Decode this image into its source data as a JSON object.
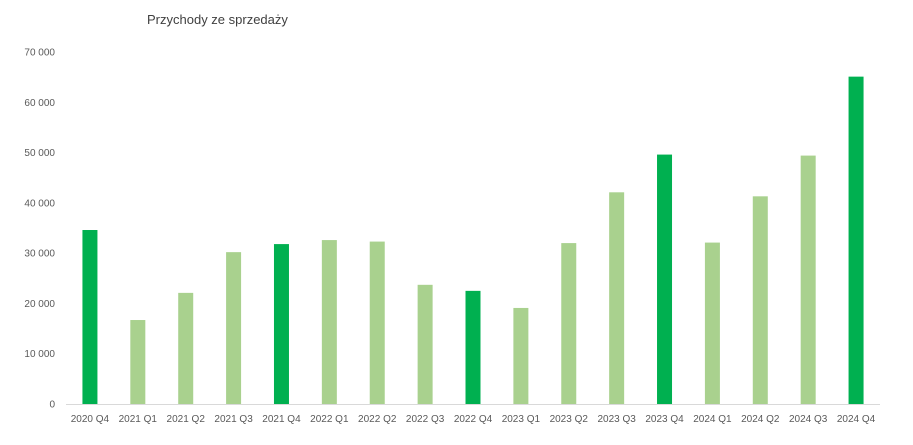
{
  "chart_data": {
    "type": "bar",
    "title": "Przychody ze sprzedaży",
    "xlabel": "",
    "ylabel": "",
    "ylim": [
      0,
      70000
    ],
    "yticks": [
      {
        "value": 0,
        "label": "0"
      },
      {
        "value": 10000,
        "label": "10 000"
      },
      {
        "value": 20000,
        "label": "20 000"
      },
      {
        "value": 30000,
        "label": "30 000"
      },
      {
        "value": 40000,
        "label": "40 000"
      },
      {
        "value": 50000,
        "label": "50 000"
      },
      {
        "value": 60000,
        "label": "60 000"
      },
      {
        "value": 70000,
        "label": "70 000"
      }
    ],
    "grid": false,
    "legend": "none",
    "categories": [
      "2020 Q4",
      "2021 Q1",
      "2021 Q2",
      "2021 Q3",
      "2021 Q4",
      "2022 Q1",
      "2022 Q2",
      "2022 Q3",
      "2022 Q4",
      "2023 Q1",
      "2023 Q2",
      "2023 Q3",
      "2023 Q4",
      "2024 Q1",
      "2024 Q2",
      "2024 Q3",
      "2024 Q4"
    ],
    "values": [
      34600,
      16700,
      22100,
      30200,
      31800,
      32600,
      32300,
      23700,
      22500,
      19100,
      32000,
      42100,
      49600,
      32100,
      41300,
      49400,
      65100
    ],
    "highlight": [
      true,
      false,
      false,
      false,
      true,
      false,
      false,
      false,
      true,
      false,
      false,
      false,
      true,
      false,
      false,
      false,
      true
    ],
    "colors": {
      "highlight": "#00b050",
      "normal": "#a9d18e",
      "axis": "#d9d9d9",
      "text": "#595959"
    }
  }
}
